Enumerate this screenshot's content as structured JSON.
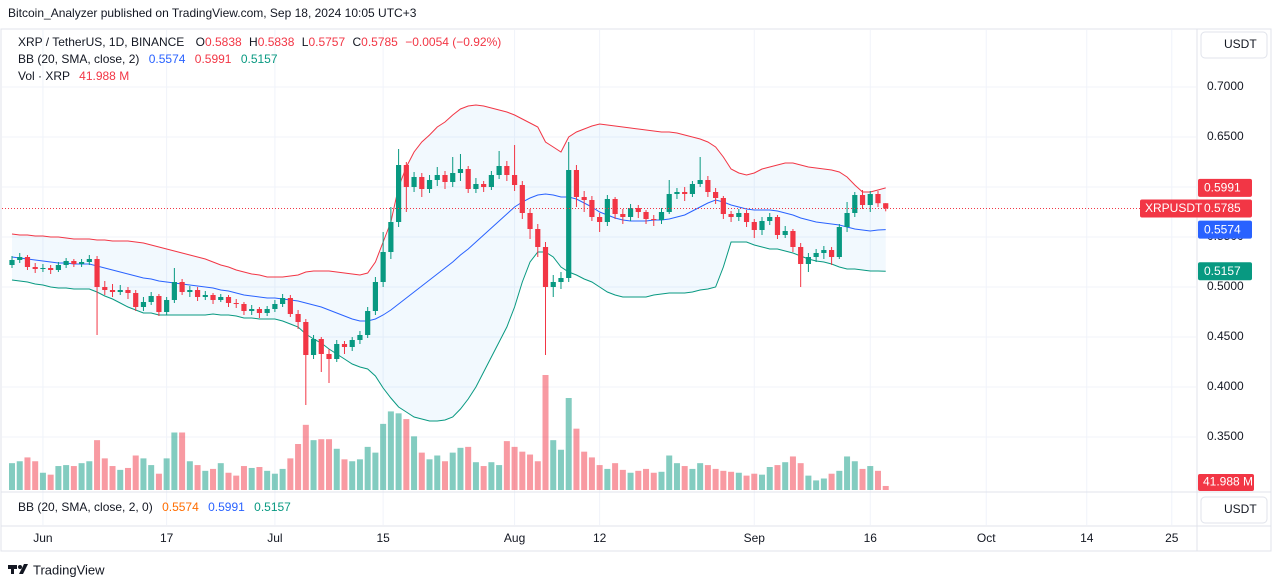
{
  "header": {
    "attribution": "Bitcoin_Analyzer published on TradingView.com, Sep 18, 2024 10:05 UTC+3",
    "brand": "TradingView"
  },
  "chart_data": {
    "type": "candlestick",
    "title": "XRP / TetherUS, 1D, BINANCE",
    "legend_keys": [
      "O",
      "H",
      "L",
      "C"
    ],
    "change": "−0.0054 (−0.92%)",
    "currency": "USDT",
    "symbol_tag": "XRPUSDT",
    "up_color": "#089981",
    "down_color": "#f23645",
    "grid": true,
    "x": [
      "05-28",
      "05-29",
      "05-30",
      "05-31",
      "06-01",
      "06-02",
      "06-03",
      "06-04",
      "06-05",
      "06-06",
      "06-07",
      "06-08",
      "06-09",
      "06-10",
      "06-11",
      "06-12",
      "06-13",
      "06-14",
      "06-15",
      "06-16",
      "06-17",
      "06-18",
      "06-19",
      "06-20",
      "06-21",
      "06-22",
      "06-23",
      "06-24",
      "06-25",
      "06-26",
      "06-27",
      "06-28",
      "06-29",
      "06-30",
      "07-01",
      "07-02",
      "07-03",
      "07-04",
      "07-05",
      "07-06",
      "07-07",
      "07-08",
      "07-09",
      "07-10",
      "07-11",
      "07-12",
      "07-13",
      "07-14",
      "07-15",
      "07-16",
      "07-17",
      "07-18",
      "07-19",
      "07-20",
      "07-21",
      "07-22",
      "07-23",
      "07-24",
      "07-25",
      "07-26",
      "07-27",
      "07-28",
      "07-29",
      "07-30",
      "07-31",
      "08-01",
      "08-02",
      "08-03",
      "08-04",
      "08-05",
      "08-06",
      "08-07",
      "08-08",
      "08-09",
      "08-10",
      "08-11",
      "08-12",
      "08-13",
      "08-14",
      "08-15",
      "08-16",
      "08-17",
      "08-18",
      "08-19",
      "08-20",
      "08-21",
      "08-22",
      "08-23",
      "08-24",
      "08-25",
      "08-26",
      "08-27",
      "08-28",
      "08-29",
      "08-30",
      "08-31",
      "09-01",
      "09-02",
      "09-03",
      "09-04",
      "09-05",
      "09-06",
      "09-07",
      "09-08",
      "09-09",
      "09-10",
      "09-11",
      "09-12",
      "09-13",
      "09-14",
      "09-15",
      "09-16",
      "09-17",
      "09-18"
    ],
    "open": [
      0.522,
      0.527,
      0.53,
      0.52,
      0.518,
      0.519,
      0.517,
      0.522,
      0.526,
      0.523,
      0.525,
      0.528,
      0.5,
      0.497,
      0.495,
      0.497,
      0.494,
      0.48,
      0.485,
      0.491,
      0.475,
      0.487,
      0.505,
      0.495,
      0.497,
      0.49,
      0.492,
      0.487,
      0.49,
      0.484,
      0.483,
      0.476,
      0.478,
      0.474,
      0.478,
      0.483,
      0.489,
      0.473,
      0.465,
      0.432,
      0.448,
      0.433,
      0.428,
      0.443,
      0.44,
      0.447,
      0.452,
      0.476,
      0.505,
      0.535,
      0.565,
      0.622,
      0.6,
      0.61,
      0.598,
      0.607,
      0.612,
      0.605,
      0.614,
      0.618,
      0.598,
      0.603,
      0.6,
      0.612,
      0.621,
      0.612,
      0.602,
      0.574,
      0.558,
      0.54,
      0.5,
      0.505,
      0.509,
      0.617,
      0.59,
      0.587,
      0.57,
      0.565,
      0.588,
      0.573,
      0.57,
      0.579,
      0.575,
      0.568,
      0.567,
      0.575,
      0.593,
      0.595,
      0.593,
      0.603,
      0.607,
      0.595,
      0.589,
      0.573,
      0.57,
      0.574,
      0.565,
      0.557,
      0.566,
      0.57,
      0.552,
      0.556,
      0.54,
      0.523,
      0.53,
      0.534,
      0.537,
      0.53,
      0.56,
      0.574,
      0.592,
      0.582,
      0.593,
      0.5838
    ],
    "high": [
      0.531,
      0.534,
      0.532,
      0.524,
      0.523,
      0.522,
      0.525,
      0.529,
      0.528,
      0.528,
      0.532,
      0.531,
      0.506,
      0.503,
      0.502,
      0.5,
      0.497,
      0.49,
      0.495,
      0.493,
      0.49,
      0.519,
      0.508,
      0.501,
      0.5,
      0.496,
      0.494,
      0.493,
      0.492,
      0.488,
      0.485,
      0.482,
      0.48,
      0.481,
      0.487,
      0.493,
      0.492,
      0.477,
      0.468,
      0.452,
      0.45,
      0.438,
      0.447,
      0.446,
      0.45,
      0.456,
      0.48,
      0.51,
      0.555,
      0.58,
      0.638,
      0.625,
      0.615,
      0.614,
      0.612,
      0.62,
      0.616,
      0.63,
      0.633,
      0.621,
      0.609,
      0.606,
      0.616,
      0.636,
      0.626,
      0.642,
      0.606,
      0.578,
      0.563,
      0.545,
      0.512,
      0.515,
      0.645,
      0.622,
      0.596,
      0.591,
      0.574,
      0.592,
      0.59,
      0.578,
      0.583,
      0.582,
      0.577,
      0.572,
      0.579,
      0.607,
      0.599,
      0.6,
      0.606,
      0.63,
      0.611,
      0.599,
      0.591,
      0.576,
      0.578,
      0.577,
      0.568,
      0.57,
      0.574,
      0.572,
      0.561,
      0.558,
      0.544,
      0.534,
      0.538,
      0.541,
      0.54,
      0.563,
      0.585,
      0.595,
      0.597,
      0.596,
      0.596,
      0.5838
    ],
    "low": [
      0.519,
      0.524,
      0.517,
      0.514,
      0.515,
      0.513,
      0.515,
      0.519,
      0.52,
      0.52,
      0.522,
      0.452,
      0.492,
      0.49,
      0.492,
      0.488,
      0.476,
      0.476,
      0.482,
      0.471,
      0.472,
      0.484,
      0.492,
      0.49,
      0.486,
      0.487,
      0.483,
      0.485,
      0.48,
      0.479,
      0.472,
      0.472,
      0.469,
      0.471,
      0.475,
      0.48,
      0.47,
      0.458,
      0.382,
      0.428,
      0.415,
      0.404,
      0.425,
      0.433,
      0.436,
      0.443,
      0.449,
      0.472,
      0.5,
      0.528,
      0.56,
      0.575,
      0.595,
      0.59,
      0.594,
      0.601,
      0.598,
      0.6,
      0.606,
      0.594,
      0.594,
      0.595,
      0.597,
      0.608,
      0.606,
      0.596,
      0.568,
      0.548,
      0.53,
      0.432,
      0.49,
      0.498,
      0.505,
      0.58,
      0.575,
      0.566,
      0.555,
      0.561,
      0.568,
      0.563,
      0.566,
      0.569,
      0.563,
      0.561,
      0.563,
      0.573,
      0.588,
      0.586,
      0.59,
      0.6,
      0.59,
      0.583,
      0.568,
      0.565,
      0.566,
      0.56,
      0.549,
      0.552,
      0.562,
      0.548,
      0.549,
      0.535,
      0.5,
      0.515,
      0.525,
      0.528,
      0.522,
      0.528,
      0.555,
      0.57,
      0.578,
      0.575,
      0.58,
      0.5757
    ],
    "close": [
      0.527,
      0.53,
      0.52,
      0.518,
      0.519,
      0.517,
      0.522,
      0.526,
      0.523,
      0.525,
      0.528,
      0.5,
      0.497,
      0.495,
      0.497,
      0.494,
      0.48,
      0.485,
      0.491,
      0.475,
      0.487,
      0.505,
      0.495,
      0.497,
      0.49,
      0.492,
      0.487,
      0.49,
      0.484,
      0.483,
      0.476,
      0.478,
      0.474,
      0.478,
      0.483,
      0.489,
      0.473,
      0.465,
      0.432,
      0.448,
      0.433,
      0.428,
      0.443,
      0.44,
      0.447,
      0.452,
      0.476,
      0.505,
      0.535,
      0.565,
      0.622,
      0.6,
      0.61,
      0.598,
      0.607,
      0.612,
      0.605,
      0.614,
      0.618,
      0.598,
      0.603,
      0.6,
      0.612,
      0.621,
      0.612,
      0.602,
      0.574,
      0.558,
      0.54,
      0.5,
      0.505,
      0.509,
      0.617,
      0.59,
      0.587,
      0.57,
      0.565,
      0.588,
      0.573,
      0.57,
      0.579,
      0.575,
      0.568,
      0.567,
      0.575,
      0.593,
      0.595,
      0.593,
      0.603,
      0.607,
      0.595,
      0.589,
      0.573,
      0.57,
      0.574,
      0.565,
      0.557,
      0.566,
      0.57,
      0.552,
      0.556,
      0.54,
      0.523,
      0.53,
      0.534,
      0.537,
      0.53,
      0.56,
      0.574,
      0.592,
      0.582,
      0.593,
      0.5838,
      0.5785
    ],
    "bollinger": {
      "name": "BB (20, SMA, close, 2)",
      "basis": {
        "color": "#2962ff",
        "values": [
          0.53,
          0.529,
          0.528,
          0.527,
          0.526,
          0.525,
          0.524,
          0.524,
          0.523,
          0.523,
          0.523,
          0.521,
          0.519,
          0.517,
          0.515,
          0.513,
          0.511,
          0.509,
          0.508,
          0.506,
          0.505,
          0.504,
          0.503,
          0.502,
          0.501,
          0.5,
          0.499,
          0.497,
          0.496,
          0.494,
          0.492,
          0.491,
          0.49,
          0.489,
          0.489,
          0.488,
          0.487,
          0.486,
          0.484,
          0.482,
          0.48,
          0.477,
          0.474,
          0.471,
          0.468,
          0.466,
          0.466,
          0.468,
          0.472,
          0.477,
          0.483,
          0.489,
          0.495,
          0.501,
          0.507,
          0.513,
          0.519,
          0.525,
          0.532,
          0.538,
          0.545,
          0.552,
          0.559,
          0.566,
          0.573,
          0.58,
          0.585,
          0.589,
          0.592,
          0.593,
          0.592,
          0.59,
          0.59,
          0.588,
          0.584,
          0.58,
          0.575,
          0.572,
          0.569,
          0.567,
          0.566,
          0.566,
          0.566,
          0.567,
          0.567,
          0.568,
          0.57,
          0.572,
          0.576,
          0.58,
          0.584,
          0.587,
          0.585,
          0.582,
          0.58,
          0.578,
          0.577,
          0.577,
          0.577,
          0.576,
          0.574,
          0.572,
          0.569,
          0.567,
          0.565,
          0.564,
          0.563,
          0.562,
          0.56,
          0.558,
          0.557,
          0.556,
          0.557,
          0.5574
        ]
      },
      "upper": {
        "color": "#f23645",
        "values": [
          0.553,
          0.552,
          0.552,
          0.551,
          0.551,
          0.55,
          0.55,
          0.549,
          0.548,
          0.548,
          0.548,
          0.547,
          0.547,
          0.546,
          0.546,
          0.546,
          0.545,
          0.544,
          0.542,
          0.54,
          0.538,
          0.536,
          0.534,
          0.532,
          0.53,
          0.528,
          0.525,
          0.522,
          0.52,
          0.517,
          0.515,
          0.513,
          0.512,
          0.51,
          0.51,
          0.51,
          0.511,
          0.512,
          0.515,
          0.516,
          0.516,
          0.516,
          0.515,
          0.514,
          0.513,
          0.512,
          0.514,
          0.525,
          0.545,
          0.565,
          0.6,
          0.62,
          0.635,
          0.645,
          0.652,
          0.66,
          0.665,
          0.672,
          0.678,
          0.681,
          0.682,
          0.681,
          0.679,
          0.677,
          0.675,
          0.672,
          0.668,
          0.664,
          0.66,
          0.645,
          0.64,
          0.635,
          0.65,
          0.655,
          0.658,
          0.661,
          0.663,
          0.662,
          0.661,
          0.66,
          0.659,
          0.658,
          0.657,
          0.656,
          0.655,
          0.655,
          0.654,
          0.652,
          0.65,
          0.648,
          0.645,
          0.64,
          0.63,
          0.618,
          0.614,
          0.612,
          0.614,
          0.618,
          0.62,
          0.622,
          0.624,
          0.624,
          0.622,
          0.62,
          0.619,
          0.618,
          0.617,
          0.615,
          0.61,
          0.602,
          0.595,
          0.595,
          0.597,
          0.5991
        ]
      },
      "lower": {
        "color": "#089981",
        "values": [
          0.507,
          0.506,
          0.505,
          0.503,
          0.502,
          0.5,
          0.499,
          0.499,
          0.498,
          0.498,
          0.498,
          0.495,
          0.491,
          0.488,
          0.484,
          0.48,
          0.477,
          0.474,
          0.474,
          0.472,
          0.472,
          0.472,
          0.472,
          0.472,
          0.472,
          0.472,
          0.473,
          0.472,
          0.472,
          0.471,
          0.469,
          0.469,
          0.468,
          0.468,
          0.468,
          0.466,
          0.463,
          0.46,
          0.453,
          0.448,
          0.444,
          0.438,
          0.433,
          0.428,
          0.423,
          0.42,
          0.418,
          0.411,
          0.399,
          0.389,
          0.38,
          0.375,
          0.37,
          0.368,
          0.366,
          0.366,
          0.367,
          0.37,
          0.378,
          0.388,
          0.4,
          0.415,
          0.43,
          0.445,
          0.46,
          0.48,
          0.505,
          0.525,
          0.535,
          0.535,
          0.53,
          0.52,
          0.515,
          0.512,
          0.508,
          0.505,
          0.5,
          0.495,
          0.492,
          0.49,
          0.49,
          0.49,
          0.49,
          0.492,
          0.493,
          0.494,
          0.494,
          0.494,
          0.495,
          0.497,
          0.498,
          0.5,
          0.52,
          0.545,
          0.545,
          0.545,
          0.542,
          0.54,
          0.538,
          0.538,
          0.536,
          0.534,
          0.531,
          0.528,
          0.526,
          0.525,
          0.523,
          0.52,
          0.518,
          0.518,
          0.517,
          0.516,
          0.516,
          0.5157
        ]
      },
      "fill": "rgba(33,150,243,0.06)"
    },
    "volume": {
      "name": "Vol · XRP",
      "last_label": "41.988 M",
      "values": [
        280,
        300,
        340,
        300,
        180,
        160,
        250,
        260,
        250,
        280,
        300,
        520,
        330,
        250,
        210,
        230,
        360,
        330,
        260,
        170,
        330,
        600,
        600,
        300,
        260,
        200,
        220,
        280,
        180,
        150,
        250,
        230,
        240,
        200,
        170,
        220,
        330,
        480,
        680,
        520,
        530,
        530,
        430,
        320,
        300,
        320,
        450,
        390,
        690,
        820,
        800,
        740,
        560,
        390,
        320,
        360,
        300,
        390,
        440,
        450,
        290,
        250,
        290,
        260,
        510,
        450,
        400,
        370,
        300,
        1200,
        520,
        420,
        960,
        640,
        400,
        340,
        260,
        220,
        280,
        210,
        180,
        200,
        220,
        180,
        190,
        360,
        280,
        250,
        220,
        280,
        260,
        220,
        200,
        190,
        180,
        150,
        170,
        160,
        240,
        260,
        290,
        350,
        280,
        150,
        100,
        120,
        170,
        200,
        350,
        300,
        220,
        250,
        200,
        41.988
      ]
    },
    "xlim": [
      "05-28",
      "10-28"
    ],
    "xticks": [
      {
        "value": "06-01",
        "label": "Jun"
      },
      {
        "value": "06-17",
        "label": "17"
      },
      {
        "value": "07-01",
        "label": "Jul"
      },
      {
        "value": "07-15",
        "label": "15"
      },
      {
        "value": "08-01",
        "label": "Aug"
      },
      {
        "value": "08-12",
        "label": "12"
      },
      {
        "value": "09-01",
        "label": "Sep"
      },
      {
        "value": "09-16",
        "label": "16"
      },
      {
        "value": "10-01",
        "label": "Oct"
      },
      {
        "value": "10-14",
        "label": "14"
      },
      {
        "value": "10-25",
        "label": "25"
      }
    ],
    "ylim": [
      0.297,
      0.757
    ],
    "yticks": [
      {
        "value": 0.35,
        "label": "0.3500"
      },
      {
        "value": 0.4,
        "label": "0.4000"
      },
      {
        "value": 0.45,
        "label": "0.4500"
      },
      {
        "value": 0.5,
        "label": "0.5000"
      },
      {
        "value": 0.55,
        "label": "0.5500"
      },
      {
        "value": 0.6,
        "label": "0.6000"
      },
      {
        "value": 0.65,
        "label": "0.6500"
      },
      {
        "value": 0.7,
        "label": "0.7000"
      }
    ],
    "lower_pane": {
      "name": "BB (20, SMA, close, 2, 0)",
      "colors": [
        "#ff6d00",
        "#2962ff",
        "#089981"
      ]
    }
  }
}
